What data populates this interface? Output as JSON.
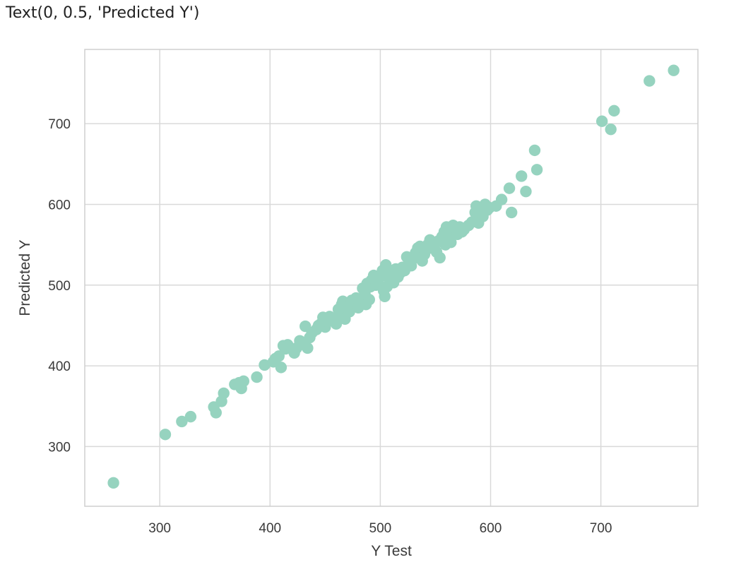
{
  "output_text": "Text(0, 0.5, 'Predicted Y')",
  "chart_data": {
    "type": "scatter",
    "xlabel": "Y Test",
    "ylabel": "Predicted Y",
    "xlim": [
      232,
      788
    ],
    "ylim": [
      226,
      792
    ],
    "x_ticks": [
      300,
      400,
      500,
      600,
      700
    ],
    "y_ticks": [
      300,
      400,
      500,
      600,
      700
    ],
    "grid": true,
    "marker_color": "#96d3bf",
    "grid_color": "#d9d9d9",
    "points": [
      [
        258,
        255
      ],
      [
        305,
        315
      ],
      [
        320,
        331
      ],
      [
        328,
        337
      ],
      [
        349,
        349
      ],
      [
        351,
        342
      ],
      [
        356,
        356
      ],
      [
        358,
        366
      ],
      [
        368,
        377
      ],
      [
        372,
        379
      ],
      [
        374,
        372
      ],
      [
        376,
        381
      ],
      [
        388,
        386
      ],
      [
        395,
        401
      ],
      [
        403,
        405
      ],
      [
        405,
        409
      ],
      [
        408,
        412
      ],
      [
        410,
        398
      ],
      [
        412,
        425
      ],
      [
        414,
        421
      ],
      [
        416,
        426
      ],
      [
        422,
        416
      ],
      [
        424,
        422
      ],
      [
        427,
        431
      ],
      [
        431,
        427
      ],
      [
        432,
        449
      ],
      [
        434,
        422
      ],
      [
        436,
        435
      ],
      [
        438,
        441
      ],
      [
        442,
        445
      ],
      [
        444,
        450
      ],
      [
        446,
        452
      ],
      [
        448,
        460
      ],
      [
        450,
        448
      ],
      [
        452,
        455
      ],
      [
        454,
        461
      ],
      [
        456,
        457
      ],
      [
        460,
        452
      ],
      [
        462,
        470
      ],
      [
        463,
        464
      ],
      [
        465,
        476
      ],
      [
        466,
        480
      ],
      [
        468,
        458
      ],
      [
        470,
        472
      ],
      [
        472,
        467
      ],
      [
        474,
        481
      ],
      [
        476,
        475
      ],
      [
        478,
        484
      ],
      [
        480,
        472
      ],
      [
        482,
        478
      ],
      [
        484,
        496
      ],
      [
        486,
        490
      ],
      [
        487,
        476
      ],
      [
        488,
        502
      ],
      [
        490,
        482
      ],
      [
        491,
        498
      ],
      [
        492,
        506
      ],
      [
        494,
        512
      ],
      [
        496,
        500
      ],
      [
        498,
        504
      ],
      [
        500,
        510
      ],
      [
        502,
        518
      ],
      [
        503,
        493
      ],
      [
        504,
        486
      ],
      [
        505,
        525
      ],
      [
        506,
        498
      ],
      [
        508,
        508
      ],
      [
        510,
        514
      ],
      [
        512,
        503
      ],
      [
        514,
        520
      ],
      [
        516,
        510
      ],
      [
        518,
        515
      ],
      [
        520,
        522
      ],
      [
        522,
        518
      ],
      [
        524,
        535
      ],
      [
        526,
        530
      ],
      [
        528,
        524
      ],
      [
        530,
        533
      ],
      [
        532,
        540
      ],
      [
        534,
        546
      ],
      [
        536,
        548
      ],
      [
        538,
        530
      ],
      [
        540,
        538
      ],
      [
        542,
        544
      ],
      [
        543,
        550
      ],
      [
        545,
        556
      ],
      [
        547,
        552
      ],
      [
        549,
        546
      ],
      [
        551,
        541
      ],
      [
        553,
        555
      ],
      [
        554,
        534
      ],
      [
        556,
        560
      ],
      [
        558,
        566
      ],
      [
        559,
        550
      ],
      [
        560,
        572
      ],
      [
        562,
        562
      ],
      [
        564,
        553
      ],
      [
        566,
        574
      ],
      [
        568,
        568
      ],
      [
        570,
        563
      ],
      [
        572,
        572
      ],
      [
        574,
        566
      ],
      [
        576,
        569
      ],
      [
        580,
        574
      ],
      [
        583,
        578
      ],
      [
        586,
        590
      ],
      [
        587,
        598
      ],
      [
        589,
        577
      ],
      [
        591,
        592
      ],
      [
        593,
        585
      ],
      [
        595,
        600
      ],
      [
        597,
        593
      ],
      [
        599,
        596
      ],
      [
        605,
        598
      ],
      [
        610,
        606
      ],
      [
        617,
        620
      ],
      [
        619,
        590
      ],
      [
        628,
        635
      ],
      [
        632,
        616
      ],
      [
        640,
        667
      ],
      [
        642,
        643
      ],
      [
        701,
        703
      ],
      [
        709,
        693
      ],
      [
        712,
        716
      ],
      [
        744,
        753
      ],
      [
        766,
        766
      ]
    ]
  }
}
